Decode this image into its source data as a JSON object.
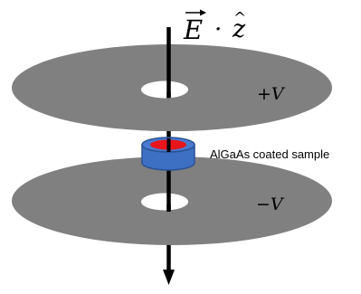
{
  "diagram": {
    "field_label": {
      "e": "E",
      "dot": "·",
      "z": "z"
    },
    "top_plate_label": "+V",
    "bottom_plate_label": "−V",
    "sample_label": "AlGaAs coated sample"
  },
  "colors": {
    "plate": "#808080",
    "sample_body": "#3d6fc2",
    "sample_edge": "#2b5294",
    "sample_core": "#e8151b",
    "axis": "#000000"
  }
}
